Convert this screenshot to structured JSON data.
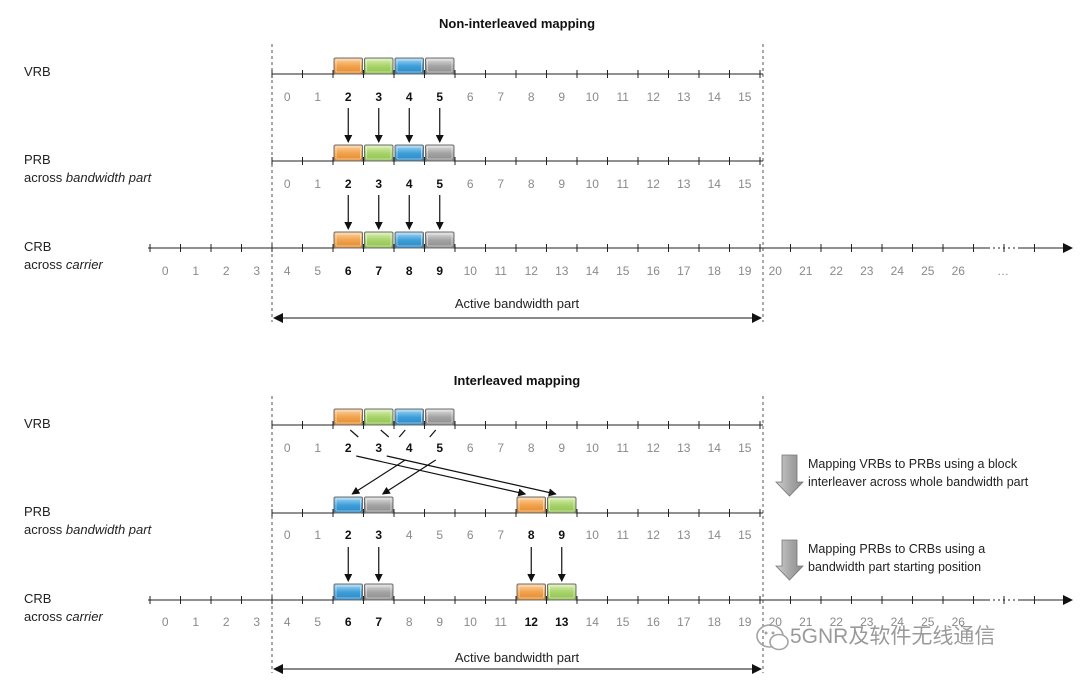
{
  "non_interleaved": {
    "title": "Non-interleaved mapping",
    "vrb_label": "VRB",
    "prb_label": "PRB",
    "prb_sub_prefix": "across",
    "prb_sub_italic": "bandwidth part",
    "crb_label": "CRB",
    "crb_sub_prefix": "across",
    "crb_sub_italic": "carrier",
    "active_bwp_label": "Active bandwidth part",
    "vrb_numbers": [
      "0",
      "1",
      "2",
      "3",
      "4",
      "5",
      "6",
      "7",
      "8",
      "9",
      "10",
      "11",
      "12",
      "13",
      "14",
      "15"
    ],
    "vrb_bold": [
      2,
      3,
      4,
      5
    ],
    "prb_numbers": [
      "0",
      "1",
      "2",
      "3",
      "4",
      "5",
      "6",
      "7",
      "8",
      "9",
      "10",
      "11",
      "12",
      "13",
      "14",
      "15"
    ],
    "prb_bold": [
      2,
      3,
      4,
      5
    ],
    "crb_numbers": [
      "0",
      "1",
      "2",
      "3",
      "4",
      "5",
      "6",
      "7",
      "8",
      "9",
      "10",
      "11",
      "12",
      "13",
      "14",
      "15",
      "16",
      "17",
      "18",
      "19",
      "20",
      "21",
      "22",
      "23",
      "24",
      "25",
      "26"
    ],
    "crb_bold": [
      6,
      7,
      8,
      9
    ],
    "crb_ellipsis": "…"
  },
  "interleaved": {
    "title": "Interleaved mapping",
    "vrb_label": "VRB",
    "prb_label": "PRB",
    "prb_sub_prefix": "across",
    "prb_sub_italic": "bandwidth part",
    "crb_label": "CRB",
    "crb_sub_prefix": "across",
    "crb_sub_italic": "carrier",
    "active_bwp_label": "Active bandwidth part",
    "vrb_numbers": [
      "0",
      "1",
      "2",
      "3",
      "4",
      "5",
      "6",
      "7",
      "8",
      "9",
      "10",
      "11",
      "12",
      "13",
      "14",
      "15"
    ],
    "vrb_bold": [
      2,
      3,
      4,
      5
    ],
    "prb_numbers": [
      "0",
      "1",
      "2",
      "3",
      "4",
      "5",
      "6",
      "7",
      "8",
      "9",
      "10",
      "11",
      "12",
      "13",
      "14",
      "15"
    ],
    "prb_bold": [
      2,
      3,
      8,
      9
    ],
    "crb_numbers": [
      "0",
      "1",
      "2",
      "3",
      "4",
      "5",
      "6",
      "7",
      "8",
      "9",
      "10",
      "11",
      "12",
      "13",
      "14",
      "15",
      "16",
      "17",
      "18",
      "19",
      "20",
      "21",
      "22",
      "23",
      "24",
      "25",
      "26"
    ],
    "crb_bold": [
      6,
      7,
      12,
      13
    ],
    "note1_line1": "Mapping VRBs to PRBs using a block",
    "note1_line2": "interleaver across whole bandwidth part",
    "note2_line1": "Mapping PRBs to CRBs using a",
    "note2_line2": "bandwidth part starting position"
  },
  "colors": {
    "orange": "#f2a34e",
    "green": "#a8d46a",
    "blue": "#3f9fd9",
    "gray": "#9a9a9a"
  },
  "watermark": "5GNR及软件无线通信"
}
